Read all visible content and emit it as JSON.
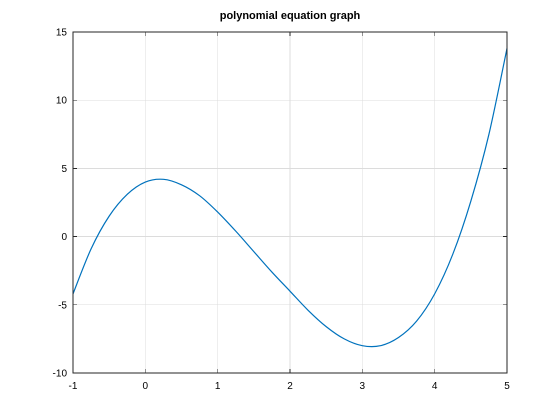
{
  "chart_data": {
    "type": "line",
    "title": "polynomial equation graph",
    "xlabel": "",
    "ylabel": "",
    "xlim": [
      -1,
      5
    ],
    "ylim": [
      -10,
      15
    ],
    "x_ticks": [
      "-1",
      "0",
      "1",
      "2",
      "3",
      "4",
      "5"
    ],
    "y_ticks": [
      "-10",
      "-5",
      "0",
      "5",
      "10",
      "15"
    ],
    "grid": true,
    "series": [
      {
        "color": "#0072bd",
        "x": [
          -1,
          -0.75,
          -0.5,
          -0.25,
          0,
          0.25,
          0.5,
          0.75,
          1,
          1.25,
          1.5,
          1.75,
          2,
          2.25,
          2.5,
          2.75,
          3,
          3.25,
          3.5,
          3.75,
          4,
          4.25,
          4.5,
          4.75,
          5
        ],
        "y": [
          -4.2,
          -0.9,
          1.5,
          3.1,
          4.0,
          4.2,
          3.8,
          3.0,
          1.8,
          0.4,
          -1.1,
          -2.6,
          -4.0,
          -5.4,
          -6.6,
          -7.5,
          -8.0,
          -8.0,
          -7.4,
          -6.2,
          -4.2,
          -1.3,
          2.6,
          7.5,
          13.8
        ]
      }
    ]
  }
}
